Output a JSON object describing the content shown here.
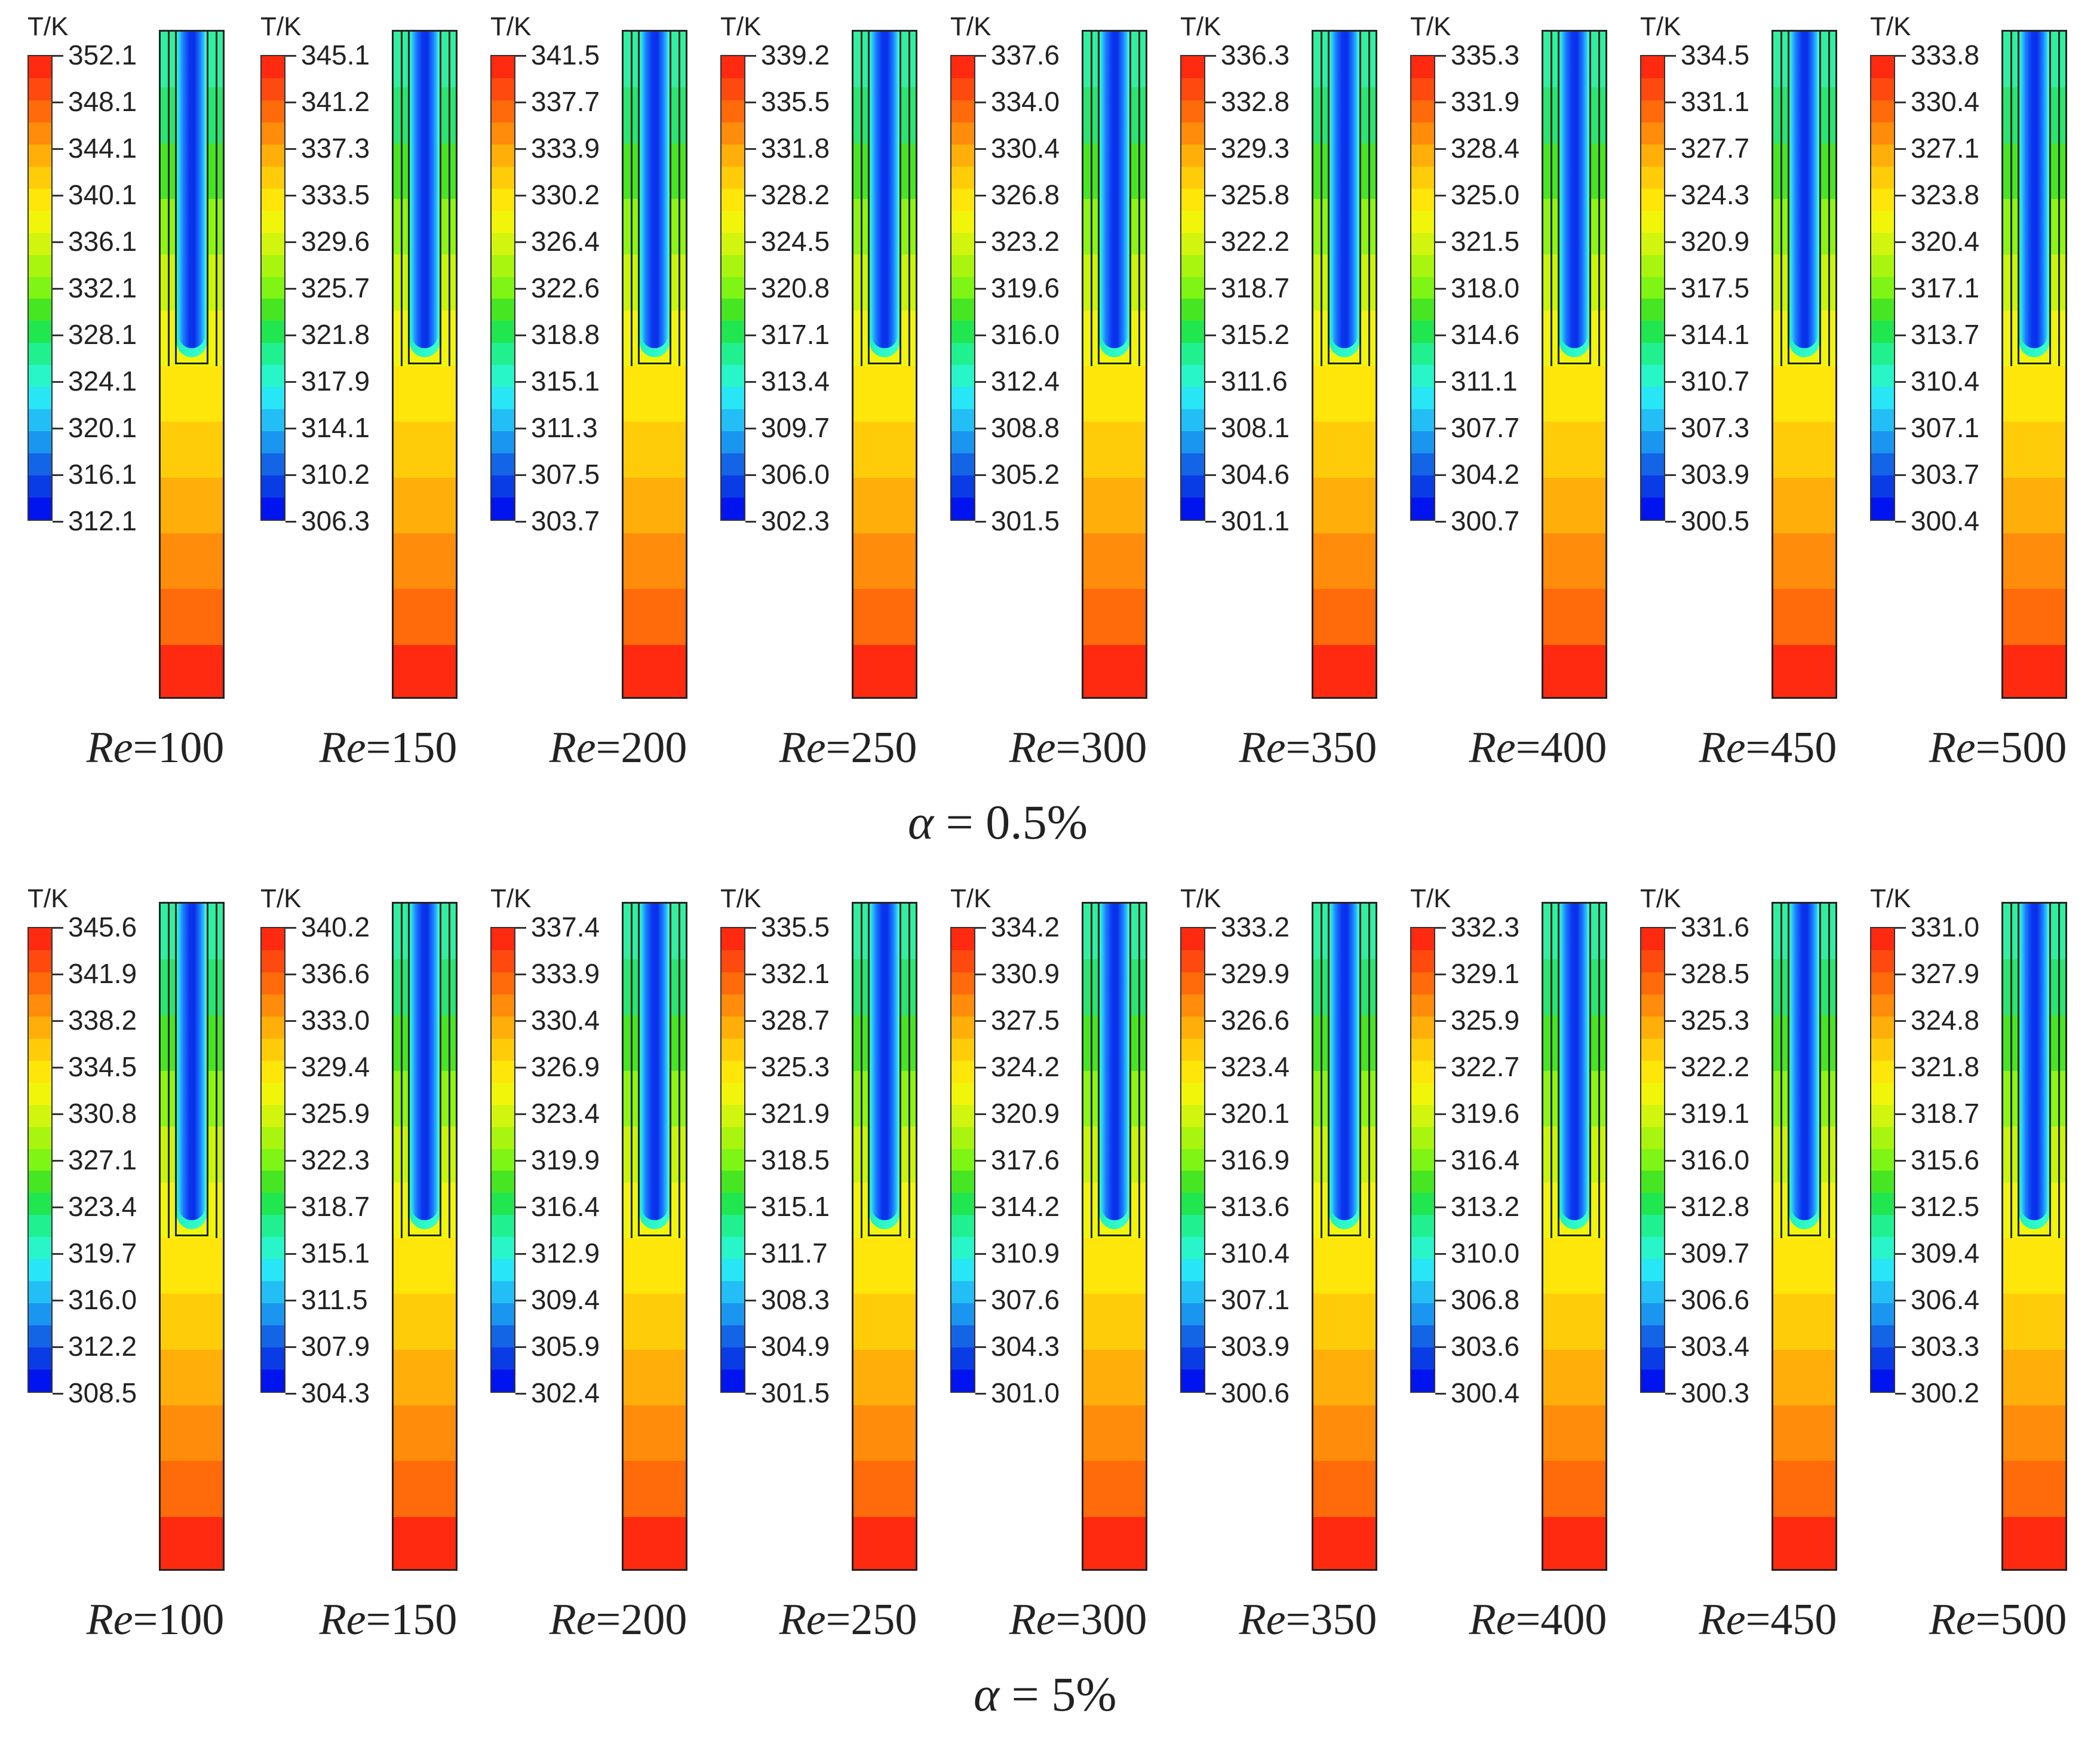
{
  "unit_label": "T/K",
  "re_prefix": "Re",
  "alpha_symbol": "α",
  "rows": [
    {
      "alpha_label": "= 0.5%",
      "panels": [
        {
          "re": "=100",
          "ticks": [
            "352.1",
            "348.1",
            "344.1",
            "340.1",
            "336.1",
            "332.1",
            "328.1",
            "324.1",
            "320.1",
            "316.1",
            "312.1"
          ]
        },
        {
          "re": "=150",
          "ticks": [
            "345.1",
            "341.2",
            "337.3",
            "333.5",
            "329.6",
            "325.7",
            "321.8",
            "317.9",
            "314.1",
            "310.2",
            "306.3"
          ]
        },
        {
          "re": "=200",
          "ticks": [
            "341.5",
            "337.7",
            "333.9",
            "330.2",
            "326.4",
            "322.6",
            "318.8",
            "315.1",
            "311.3",
            "307.5",
            "303.7"
          ]
        },
        {
          "re": "=250",
          "ticks": [
            "339.2",
            "335.5",
            "331.8",
            "328.2",
            "324.5",
            "320.8",
            "317.1",
            "313.4",
            "309.7",
            "306.0",
            "302.3"
          ]
        },
        {
          "re": "=300",
          "ticks": [
            "337.6",
            "334.0",
            "330.4",
            "326.8",
            "323.2",
            "319.6",
            "316.0",
            "312.4",
            "308.8",
            "305.2",
            "301.5"
          ]
        },
        {
          "re": "=350",
          "ticks": [
            "336.3",
            "332.8",
            "329.3",
            "325.8",
            "322.2",
            "318.7",
            "315.2",
            "311.6",
            "308.1",
            "304.6",
            "301.1"
          ]
        },
        {
          "re": "=400",
          "ticks": [
            "335.3",
            "331.9",
            "328.4",
            "325.0",
            "321.5",
            "318.0",
            "314.6",
            "311.1",
            "307.7",
            "304.2",
            "300.7"
          ]
        },
        {
          "re": "=450",
          "ticks": [
            "334.5",
            "331.1",
            "327.7",
            "324.3",
            "320.9",
            "317.5",
            "314.1",
            "310.7",
            "307.3",
            "303.9",
            "300.5"
          ]
        },
        {
          "re": "=500",
          "ticks": [
            "333.8",
            "330.4",
            "327.1",
            "323.8",
            "320.4",
            "317.1",
            "313.7",
            "310.4",
            "307.1",
            "303.7",
            "300.4"
          ]
        }
      ]
    },
    {
      "alpha_label": "= 5%",
      "panels": [
        {
          "re": "=100",
          "ticks": [
            "345.6",
            "341.9",
            "338.2",
            "334.5",
            "330.8",
            "327.1",
            "323.4",
            "319.7",
            "316.0",
            "312.2",
            "308.5"
          ]
        },
        {
          "re": "=150",
          "ticks": [
            "340.2",
            "336.6",
            "333.0",
            "329.4",
            "325.9",
            "322.3",
            "318.7",
            "315.1",
            "311.5",
            "307.9",
            "304.3"
          ]
        },
        {
          "re": "=200",
          "ticks": [
            "337.4",
            "333.9",
            "330.4",
            "326.9",
            "323.4",
            "319.9",
            "316.4",
            "312.9",
            "309.4",
            "305.9",
            "302.4"
          ]
        },
        {
          "re": "=250",
          "ticks": [
            "335.5",
            "332.1",
            "328.7",
            "325.3",
            "321.9",
            "318.5",
            "315.1",
            "311.7",
            "308.3",
            "304.9",
            "301.5"
          ]
        },
        {
          "re": "=300",
          "ticks": [
            "334.2",
            "330.9",
            "327.5",
            "324.2",
            "320.9",
            "317.6",
            "314.2",
            "310.9",
            "307.6",
            "304.3",
            "301.0"
          ]
        },
        {
          "re": "=350",
          "ticks": [
            "333.2",
            "329.9",
            "326.6",
            "323.4",
            "320.1",
            "316.9",
            "313.6",
            "310.4",
            "307.1",
            "303.9",
            "300.6"
          ]
        },
        {
          "re": "=400",
          "ticks": [
            "332.3",
            "329.1",
            "325.9",
            "322.7",
            "319.6",
            "316.4",
            "313.2",
            "310.0",
            "306.8",
            "303.6",
            "300.4"
          ]
        },
        {
          "re": "=450",
          "ticks": [
            "331.6",
            "328.5",
            "325.3",
            "322.2",
            "319.1",
            "316.0",
            "312.8",
            "309.7",
            "306.6",
            "303.4",
            "300.3"
          ]
        },
        {
          "re": "=500",
          "ticks": [
            "331.0",
            "327.9",
            "324.8",
            "321.8",
            "318.7",
            "315.6",
            "312.5",
            "309.4",
            "306.4",
            "303.3",
            "300.2"
          ]
        }
      ]
    }
  ],
  "palette": [
    "#ff2a0f",
    "#ff4a0f",
    "#ff6a0a",
    "#ff8c0a",
    "#ffae0a",
    "#ffcc0a",
    "#ffe60a",
    "#f0f50a",
    "#d2f50f",
    "#aaf50f",
    "#7ef514",
    "#46e622",
    "#20e650",
    "#20f090",
    "#28f5c8",
    "#28e6f5",
    "#23bef5",
    "#1a96f0",
    "#1464e6",
    "#0a3ce6",
    "#0014f0"
  ],
  "tube_bands": [
    "#30f0a0",
    "#28e670",
    "#46e622",
    "#8cf514",
    "#c8f50a",
    "#f0f50a",
    "#ffe60a",
    "#ffcc0a",
    "#ffae0a",
    "#ff8c0a",
    "#ff6a0a",
    "#ff2a0f"
  ]
}
